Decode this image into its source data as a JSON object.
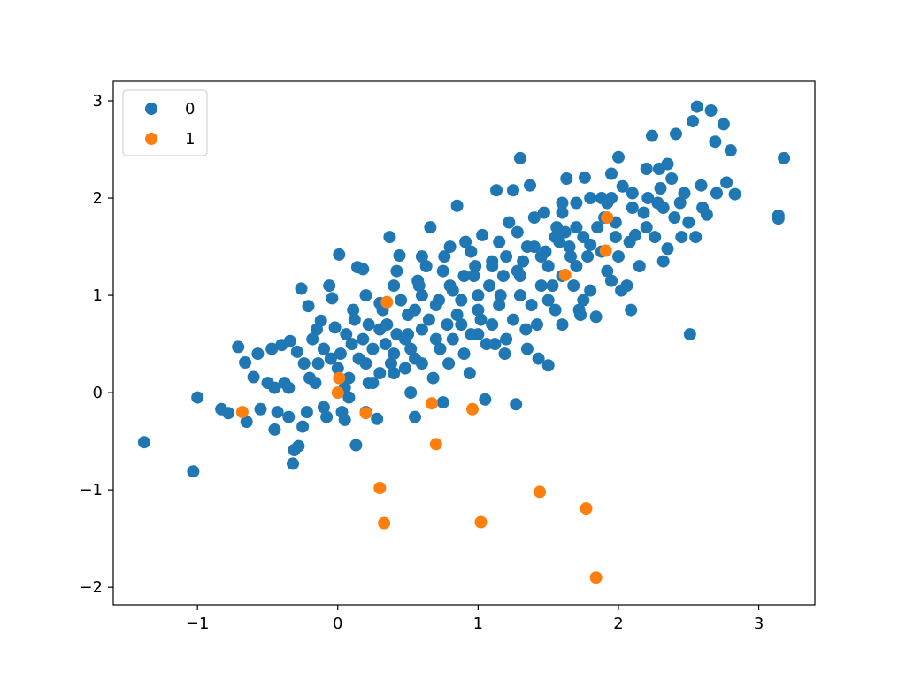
{
  "chart_data": {
    "type": "scatter",
    "title": "",
    "xlabel": "",
    "ylabel": "",
    "xlim": [
      -1.6,
      3.4
    ],
    "ylim": [
      -2.18,
      3.2
    ],
    "x_ticks": [
      -1,
      0,
      1,
      2,
      3
    ],
    "y_ticks": [
      -2,
      -1,
      0,
      1,
      2,
      3
    ],
    "x_tick_labels": [
      "−1",
      "0",
      "1",
      "2",
      "3"
    ],
    "y_tick_labels": [
      "−2",
      "−1",
      "0",
      "1",
      "2",
      "3"
    ],
    "grid": false,
    "legend_position": "top-left",
    "series": [
      {
        "name": "0",
        "color": "#1f77b4",
        "points": [
          [
            -1.38,
            -0.51
          ],
          [
            -1.03,
            -0.81
          ],
          [
            -1.0,
            -0.05
          ],
          [
            -0.83,
            -0.17
          ],
          [
            -0.78,
            -0.21
          ],
          [
            -0.71,
            0.47
          ],
          [
            -0.66,
            0.31
          ],
          [
            -0.65,
            -0.3
          ],
          [
            -0.6,
            0.16
          ],
          [
            -0.57,
            0.4
          ],
          [
            -0.55,
            -0.17
          ],
          [
            -0.5,
            0.1
          ],
          [
            -0.47,
            0.45
          ],
          [
            -0.45,
            0.05
          ],
          [
            -0.43,
            -0.2
          ],
          [
            -0.4,
            0.49
          ],
          [
            -0.38,
            0.1
          ],
          [
            -0.35,
            -0.25
          ],
          [
            -0.34,
            0.53
          ],
          [
            -0.31,
            -0.59
          ],
          [
            -0.32,
            -0.73
          ],
          [
            -0.29,
            0.42
          ],
          [
            -0.26,
            1.07
          ],
          [
            -0.24,
            0.3
          ],
          [
            -0.22,
            -0.2
          ],
          [
            -0.21,
            0.89
          ],
          [
            -0.18,
            0.55
          ],
          [
            -0.16,
            0.1
          ],
          [
            -0.14,
            0.3
          ],
          [
            -0.12,
            0.74
          ],
          [
            -0.1,
            0.45
          ],
          [
            -0.08,
            -0.25
          ],
          [
            -0.06,
            1.1
          ],
          [
            -0.04,
            0.97
          ],
          [
            -0.02,
            0.67
          ],
          [
            0.01,
            1.42
          ],
          [
            0.02,
            0.4
          ],
          [
            0.03,
            -0.2
          ],
          [
            0.06,
            0.6
          ],
          [
            0.08,
            0.15
          ],
          [
            0.11,
            0.85
          ],
          [
            0.13,
            -0.54
          ],
          [
            0.14,
            1.29
          ],
          [
            0.18,
            1.27
          ],
          [
            0.2,
            0.3
          ],
          [
            0.22,
            0.7
          ],
          [
            0.25,
            0.1
          ],
          [
            0.28,
            -0.27
          ],
          [
            0.3,
            0.92
          ],
          [
            0.34,
            0.5
          ],
          [
            0.37,
            1.6
          ],
          [
            0.4,
            0.2
          ],
          [
            0.42,
            1.25
          ],
          [
            0.44,
            1.41
          ],
          [
            0.48,
            0.55
          ],
          [
            0.5,
            0.8
          ],
          [
            0.52,
            0.0
          ],
          [
            0.55,
            0.35
          ],
          [
            0.57,
            1.15
          ],
          [
            0.6,
            0.65
          ],
          [
            0.63,
            1.3
          ],
          [
            0.66,
            1.7
          ],
          [
            0.7,
            0.9
          ],
          [
            0.73,
            0.45
          ],
          [
            0.76,
            1.4
          ],
          [
            0.79,
            0.3
          ],
          [
            0.82,
            1.05
          ],
          [
            0.85,
            1.92
          ],
          [
            0.88,
            0.7
          ],
          [
            0.91,
            1.55
          ],
          [
            0.94,
            0.2
          ],
          [
            0.97,
            1.2
          ],
          [
            1.0,
            0.85
          ],
          [
            1.03,
            1.62
          ],
          [
            1.06,
            0.5
          ],
          [
            1.1,
            1.35
          ],
          [
            1.13,
            2.08
          ],
          [
            1.16,
            1.0
          ],
          [
            1.19,
            0.4
          ],
          [
            1.22,
            1.75
          ],
          [
            1.25,
            2.08
          ],
          [
            1.28,
            1.25
          ],
          [
            1.3,
            2.41
          ],
          [
            1.34,
            0.65
          ],
          [
            1.37,
            2.13
          ],
          [
            1.4,
            1.5
          ],
          [
            1.43,
            0.35
          ],
          [
            1.47,
            1.85
          ],
          [
            1.5,
            0.28
          ],
          [
            1.53,
            1.1
          ],
          [
            1.56,
            1.7
          ],
          [
            1.6,
            0.7
          ],
          [
            1.63,
            2.2
          ],
          [
            1.66,
            1.4
          ],
          [
            1.7,
            1.95
          ],
          [
            1.73,
            0.8
          ],
          [
            1.76,
            2.21
          ],
          [
            1.8,
            1.52
          ],
          [
            1.84,
            0.78
          ],
          [
            1.88,
            2.0
          ],
          [
            1.92,
            1.25
          ],
          [
            1.95,
            2.0
          ],
          [
            1.98,
            1.6
          ],
          [
            2.0,
            2.42
          ],
          [
            2.03,
            2.12
          ],
          [
            2.06,
            1.1
          ],
          [
            2.09,
            0.85
          ],
          [
            2.12,
            1.62
          ],
          [
            2.15,
            1.3
          ],
          [
            2.18,
            1.85
          ],
          [
            2.21,
            2.0
          ],
          [
            2.24,
            2.64
          ],
          [
            2.26,
            1.6
          ],
          [
            2.29,
            2.3
          ],
          [
            2.32,
            1.9
          ],
          [
            2.35,
            1.48
          ],
          [
            2.38,
            2.2
          ],
          [
            2.41,
            2.66
          ],
          [
            2.44,
            1.95
          ],
          [
            2.47,
            2.05
          ],
          [
            2.5,
            1.75
          ],
          [
            2.51,
            0.6
          ],
          [
            2.53,
            2.79
          ],
          [
            2.56,
            2.94
          ],
          [
            2.59,
            2.13
          ],
          [
            2.63,
            1.83
          ],
          [
            2.66,
            2.9
          ],
          [
            2.69,
            2.58
          ],
          [
            2.75,
            2.76
          ],
          [
            2.77,
            2.16
          ],
          [
            2.8,
            2.49
          ],
          [
            2.83,
            2.04
          ],
          [
            3.14,
            1.82
          ],
          [
            3.14,
            1.79
          ],
          [
            3.18,
            2.41
          ],
          [
            1.27,
            -0.12
          ],
          [
            1.05,
            -0.07
          ],
          [
            0.75,
            -0.1
          ],
          [
            0.55,
            -0.25
          ],
          [
            0.2,
            -0.2
          ],
          [
            0.05,
            -0.28
          ],
          [
            -0.1,
            -0.15
          ],
          [
            -0.25,
            -0.35
          ],
          [
            -0.28,
            -0.55
          ],
          [
            -0.45,
            -0.38
          ],
          [
            0.45,
            0.95
          ],
          [
            0.6,
            1.0
          ],
          [
            0.8,
            1.1
          ],
          [
            0.9,
            1.2
          ],
          [
            1.1,
            1.3
          ],
          [
            1.2,
            1.4
          ],
          [
            1.35,
            1.5
          ],
          [
            1.45,
            1.4
          ],
          [
            1.55,
            1.6
          ],
          [
            1.65,
            1.5
          ],
          [
            1.75,
            1.6
          ],
          [
            1.85,
            1.7
          ],
          [
            0.35,
            0.7
          ],
          [
            0.5,
            0.6
          ],
          [
            0.65,
            0.75
          ],
          [
            0.85,
            0.8
          ],
          [
            0.95,
            0.6
          ],
          [
            1.15,
            0.9
          ],
          [
            1.3,
            1.0
          ],
          [
            1.45,
            1.1
          ],
          [
            1.6,
            1.2
          ],
          [
            1.7,
            1.3
          ],
          [
            0.25,
            0.45
          ],
          [
            0.4,
            0.4
          ],
          [
            0.7,
            0.55
          ],
          [
            1.0,
            0.6
          ],
          [
            1.25,
            0.75
          ],
          [
            1.5,
            0.95
          ],
          [
            1.8,
            1.05
          ],
          [
            2.0,
            1.4
          ],
          [
            2.2,
            1.7
          ],
          [
            2.4,
            1.8
          ],
          [
            0.1,
            0.5
          ],
          [
            0.3,
            0.65
          ],
          [
            0.55,
            0.85
          ],
          [
            0.75,
            1.25
          ],
          [
            0.95,
            1.45
          ],
          [
            1.15,
            1.55
          ],
          [
            1.4,
            1.8
          ],
          [
            1.6,
            1.85
          ],
          [
            0.0,
            0.25
          ],
          [
            0.15,
            0.35
          ],
          [
            0.3,
            0.2
          ],
          [
            0.6,
            0.3
          ],
          [
            0.9,
            0.4
          ],
          [
            1.2,
            0.55
          ],
          [
            1.35,
            0.45
          ],
          [
            1.55,
            0.85
          ],
          [
            1.75,
            0.95
          ],
          [
            1.95,
            1.15
          ],
          [
            0.2,
            1.0
          ],
          [
            0.4,
            1.1
          ],
          [
            0.6,
            1.4
          ],
          [
            0.8,
            1.5
          ],
          [
            1.0,
            1.0
          ],
          [
            1.1,
            0.7
          ],
          [
            1.3,
            1.2
          ],
          [
            1.5,
            1.3
          ],
          [
            1.7,
            1.7
          ],
          [
            1.9,
            1.8
          ],
          [
            2.1,
            1.9
          ],
          [
            2.3,
            2.1
          ],
          [
            2.45,
            1.6
          ],
          [
            2.6,
            1.9
          ],
          [
            2.2,
            2.3
          ],
          [
            2.35,
            2.35
          ],
          [
            2.1,
            2.05
          ],
          [
            1.95,
            2.25
          ],
          [
            1.8,
            2.0
          ],
          [
            1.6,
            1.95
          ],
          [
            -0.15,
            0.65
          ],
          [
            -0.05,
            0.35
          ],
          [
            0.05,
            0.05
          ],
          [
            0.18,
            0.55
          ],
          [
            0.32,
            0.85
          ],
          [
            0.48,
            0.25
          ],
          [
            0.68,
            0.15
          ],
          [
            0.88,
            0.95
          ],
          [
            1.08,
            1.1
          ],
          [
            1.28,
            1.65
          ],
          [
            1.48,
            1.45
          ],
          [
            1.68,
            1.1
          ],
          [
            1.88,
            1.45
          ],
          [
            2.08,
            1.55
          ],
          [
            2.28,
            1.95
          ],
          [
            0.58,
            1.1
          ],
          [
            0.78,
            0.7
          ],
          [
            0.98,
            1.3
          ],
          [
            1.18,
            1.2
          ],
          [
            1.38,
            0.9
          ],
          [
            1.58,
            1.55
          ],
          [
            1.78,
            1.4
          ],
          [
            1.98,
            1.75
          ],
          [
            0.12,
            0.75
          ],
          [
            0.42,
            0.6
          ],
          [
            0.72,
            0.95
          ],
          [
            1.02,
            0.75
          ],
          [
            1.32,
            1.35
          ],
          [
            1.62,
            1.65
          ],
          [
            1.92,
            1.95
          ],
          [
            -0.35,
            0.05
          ],
          [
            -0.2,
            0.15
          ],
          [
            -0.1,
            0.45
          ],
          [
            0.08,
            -0.05
          ],
          [
            0.22,
            0.1
          ],
          [
            0.38,
            0.3
          ],
          [
            0.52,
            0.45
          ],
          [
            0.82,
            0.55
          ],
          [
            1.12,
            0.5
          ],
          [
            1.42,
            0.7
          ],
          [
            1.72,
            0.85
          ],
          [
            2.02,
            1.05
          ],
          [
            2.32,
            1.35
          ],
          [
            2.55,
            1.6
          ],
          [
            2.7,
            2.05
          ]
        ]
      },
      {
        "name": "1",
        "color": "#ff7f0e",
        "points": [
          [
            -0.68,
            -0.2
          ],
          [
            0.0,
            0.0
          ],
          [
            0.01,
            0.15
          ],
          [
            0.2,
            -0.21
          ],
          [
            0.3,
            -0.98
          ],
          [
            0.33,
            -1.34
          ],
          [
            0.35,
            0.93
          ],
          [
            0.67,
            -0.11
          ],
          [
            0.7,
            -0.53
          ],
          [
            0.96,
            -0.17
          ],
          [
            1.02,
            -1.33
          ],
          [
            1.44,
            -1.02
          ],
          [
            1.62,
            1.21
          ],
          [
            1.77,
            -1.19
          ],
          [
            1.84,
            -1.9
          ],
          [
            1.91,
            1.46
          ],
          [
            1.92,
            1.8
          ]
        ]
      }
    ]
  }
}
